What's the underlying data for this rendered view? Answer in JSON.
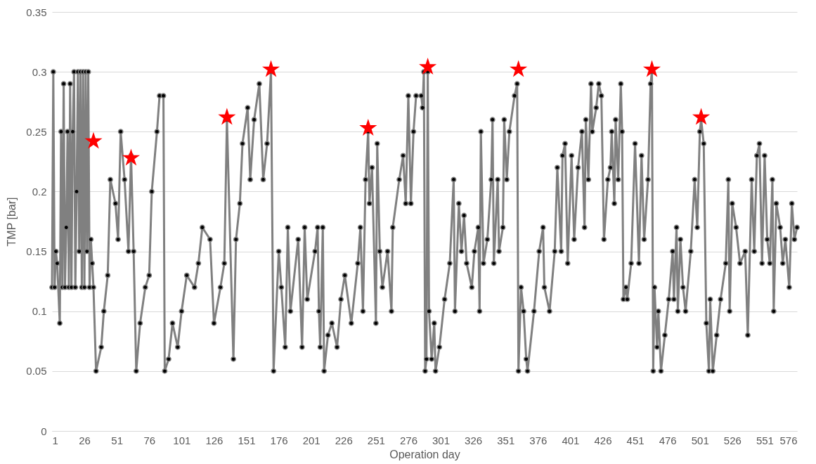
{
  "chart_data": {
    "type": "line",
    "xlabel": "Operation day",
    "ylabel": "TMP [bar]",
    "xlim": [
      1,
      576
    ],
    "xticks": [
      1,
      26,
      51,
      76,
      101,
      126,
      151,
      176,
      201,
      226,
      251,
      276,
      301,
      326,
      351,
      376,
      401,
      426,
      451,
      476,
      501,
      526,
      551,
      576
    ],
    "ylim": [
      0,
      0.35
    ],
    "yticks": [
      0,
      0.05,
      0.1,
      0.15,
      0.2,
      0.25,
      0.3,
      0.35
    ],
    "grid": "y",
    "marker": "circle",
    "line_style": "solid",
    "series": [
      {
        "color": "#808080",
        "x": [
          1,
          2,
          3,
          4,
          5,
          7,
          8,
          9,
          10,
          11,
          12,
          13,
          14,
          15,
          16,
          17,
          18,
          19,
          20,
          21,
          22,
          23,
          24,
          25,
          26,
          27,
          28,
          29,
          30,
          31,
          32,
          33,
          35,
          39,
          41,
          44,
          46,
          50,
          52,
          54,
          57,
          60,
          62,
          64,
          66,
          69,
          73,
          76,
          78,
          82,
          84,
          87,
          88,
          91,
          94,
          98,
          101,
          105,
          111,
          114,
          117,
          123,
          126,
          131,
          134,
          136,
          141,
          143,
          146,
          148,
          152,
          154,
          157,
          161,
          164,
          167,
          170,
          172,
          176,
          178,
          181,
          183,
          185,
          191,
          194,
          196,
          198,
          204,
          206,
          207,
          208,
          210,
          211,
          214,
          217,
          221,
          224,
          227,
          232,
          237,
          239,
          241,
          243,
          245,
          246,
          248,
          251,
          252,
          254,
          256,
          260,
          263,
          264,
          269,
          272,
          274,
          276,
          278,
          280,
          282,
          286,
          287,
          288,
          289,
          290,
          291,
          292,
          294,
          296,
          297,
          300,
          304,
          308,
          311,
          312,
          315,
          317,
          319,
          321,
          325,
          327,
          330,
          331,
          332,
          334,
          337,
          340,
          341,
          342,
          345,
          346,
          349,
          350,
          352,
          354,
          358,
          360,
          361,
          363,
          365,
          367,
          368,
          373,
          377,
          380,
          381,
          385,
          389,
          391,
          394,
          395,
          397,
          399,
          402,
          404,
          407,
          410,
          412,
          413,
          415,
          417,
          418,
          421,
          423,
          425,
          427,
          430,
          432,
          433,
          435,
          436,
          438,
          440,
          441,
          442,
          444,
          445,
          448,
          451,
          454,
          456,
          458,
          461,
          463,
          464,
          465,
          466,
          468,
          469,
          471,
          474,
          477,
          480,
          481,
          483,
          484,
          486,
          488,
          490,
          494,
          497,
          499,
          501,
          502,
          504,
          506,
          508,
          509,
          511,
          514,
          517,
          521,
          523,
          524,
          526,
          529,
          532,
          536,
          538,
          541,
          543,
          545,
          547,
          549,
          551,
          553,
          555,
          557,
          558,
          560,
          563,
          565,
          567,
          570,
          572,
          574,
          576
        ],
        "values": [
          0.12,
          0.3,
          0.12,
          0.15,
          0.14,
          0.09,
          0.25,
          0.12,
          0.29,
          0.12,
          0.17,
          0.25,
          0.12,
          0.29,
          0.12,
          0.25,
          0.3,
          0.12,
          0.2,
          0.3,
          0.15,
          0.3,
          0.12,
          0.3,
          0.12,
          0.3,
          0.15,
          0.3,
          0.12,
          0.16,
          0.14,
          0.12,
          0.05,
          0.07,
          0.1,
          0.13,
          0.21,
          0.19,
          0.16,
          0.25,
          0.21,
          0.15,
          0.23,
          0.15,
          0.05,
          0.09,
          0.12,
          0.13,
          0.2,
          0.25,
          0.28,
          0.28,
          0.05,
          0.06,
          0.09,
          0.07,
          0.1,
          0.13,
          0.12,
          0.14,
          0.17,
          0.16,
          0.09,
          0.12,
          0.14,
          0.26,
          0.06,
          0.16,
          0.19,
          0.24,
          0.27,
          0.21,
          0.26,
          0.29,
          0.21,
          0.24,
          0.3,
          0.05,
          0.15,
          0.12,
          0.07,
          0.17,
          0.1,
          0.16,
          0.07,
          0.17,
          0.11,
          0.15,
          0.17,
          0.1,
          0.07,
          0.17,
          0.05,
          0.08,
          0.09,
          0.07,
          0.11,
          0.13,
          0.09,
          0.14,
          0.17,
          0.1,
          0.21,
          0.25,
          0.19,
          0.22,
          0.09,
          0.24,
          0.15,
          0.12,
          0.15,
          0.1,
          0.17,
          0.21,
          0.23,
          0.19,
          0.28,
          0.19,
          0.25,
          0.28,
          0.28,
          0.27,
          0.3,
          0.05,
          0.06,
          0.3,
          0.1,
          0.06,
          0.09,
          0.05,
          0.07,
          0.11,
          0.14,
          0.21,
          0.1,
          0.19,
          0.15,
          0.18,
          0.14,
          0.12,
          0.15,
          0.17,
          0.1,
          0.25,
          0.14,
          0.16,
          0.21,
          0.26,
          0.14,
          0.21,
          0.15,
          0.17,
          0.26,
          0.21,
          0.25,
          0.28,
          0.29,
          0.05,
          0.12,
          0.1,
          0.06,
          0.05,
          0.1,
          0.15,
          0.17,
          0.12,
          0.1,
          0.15,
          0.22,
          0.15,
          0.23,
          0.24,
          0.14,
          0.23,
          0.16,
          0.22,
          0.25,
          0.17,
          0.26,
          0.21,
          0.29,
          0.25,
          0.27,
          0.29,
          0.28,
          0.16,
          0.21,
          0.22,
          0.25,
          0.19,
          0.26,
          0.21,
          0.29,
          0.25,
          0.11,
          0.12,
          0.11,
          0.14,
          0.24,
          0.14,
          0.23,
          0.16,
          0.21,
          0.29,
          0.3,
          0.05,
          0.12,
          0.07,
          0.1,
          0.05,
          0.08,
          0.11,
          0.15,
          0.11,
          0.17,
          0.1,
          0.16,
          0.12,
          0.1,
          0.15,
          0.21,
          0.17,
          0.25,
          0.26,
          0.24,
          0.09,
          0.05,
          0.11,
          0.05,
          0.08,
          0.11,
          0.14,
          0.21,
          0.1,
          0.19,
          0.17,
          0.14,
          0.15,
          0.08,
          0.21,
          0.15,
          0.23,
          0.24,
          0.14,
          0.23,
          0.16,
          0.14,
          0.21,
          0.1,
          0.19,
          0.17,
          0.14,
          0.16,
          0.12,
          0.19,
          0.16,
          0.17
        ]
      },
      {
        "type": "scatter",
        "color": "#ff0000",
        "marker": "star",
        "x": [
          33,
          62,
          136,
          170,
          245,
          291,
          361,
          464,
          502
        ],
        "values": [
          0.242,
          0.228,
          0.262,
          0.302,
          0.253,
          0.304,
          0.302,
          0.302,
          0.262
        ]
      }
    ]
  }
}
